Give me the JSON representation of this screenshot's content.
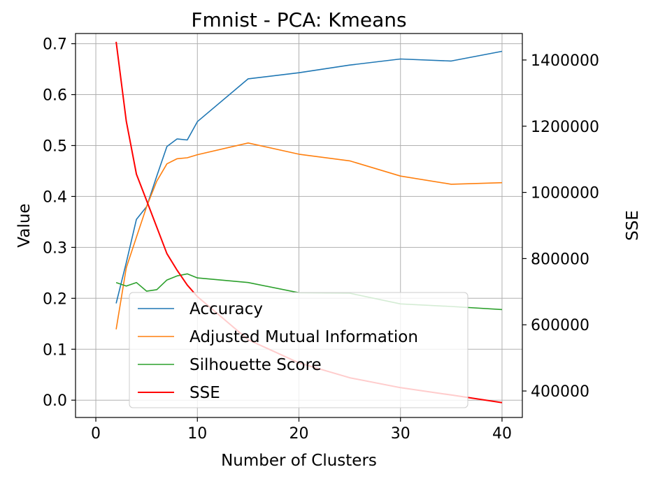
{
  "chart_data": {
    "type": "line",
    "title": "Fmnist - PCA: Kmeans",
    "xlabel": "Number of Clusters",
    "ylabel": "Value",
    "y2label": "SSE",
    "xlim": [
      -2,
      42
    ],
    "ylim": [
      -0.034,
      0.72
    ],
    "y2lim": [
      320000,
      1480000
    ],
    "xticks": [
      0,
      10,
      20,
      30,
      40
    ],
    "yticks": [
      0.0,
      0.1,
      0.2,
      0.3,
      0.4,
      0.5,
      0.6,
      0.7
    ],
    "y2ticks": [
      400000,
      600000,
      800000,
      1000000,
      1200000,
      1400000
    ],
    "grid": true,
    "legend_position": "lower-center",
    "series": [
      {
        "name": "Accuracy",
        "axis": "left",
        "color": "#1f77b4",
        "x": [
          2,
          3,
          4,
          5,
          6,
          7,
          8,
          9,
          10,
          15,
          20,
          25,
          30,
          35,
          40
        ],
        "y": [
          0.19,
          0.27,
          0.355,
          0.38,
          0.44,
          0.498,
          0.513,
          0.511,
          0.547,
          0.631,
          0.643,
          0.658,
          0.67,
          0.666,
          0.685
        ]
      },
      {
        "name": "Adjusted Mutual Information",
        "axis": "left",
        "color": "#ff7f0e",
        "x": [
          2,
          3,
          4,
          5,
          6,
          7,
          8,
          9,
          10,
          15,
          20,
          25,
          30,
          35,
          40
        ],
        "y": [
          0.139,
          0.26,
          0.32,
          0.38,
          0.43,
          0.464,
          0.474,
          0.476,
          0.482,
          0.505,
          0.483,
          0.47,
          0.44,
          0.424,
          0.427
        ]
      },
      {
        "name": "Silhouette Score",
        "axis": "left",
        "color": "#2ca02c",
        "x": [
          2,
          3,
          4,
          5,
          6,
          7,
          8,
          9,
          10,
          15,
          20,
          25,
          30,
          35,
          40
        ],
        "y": [
          0.231,
          0.224,
          0.231,
          0.214,
          0.217,
          0.236,
          0.244,
          0.248,
          0.24,
          0.231,
          0.211,
          0.21,
          0.189,
          0.184,
          0.178
        ]
      },
      {
        "name": "SSE",
        "axis": "right",
        "color": "#ff0000",
        "x": [
          2,
          3,
          4,
          5,
          6,
          7,
          8,
          9,
          10,
          15,
          20,
          25,
          30,
          35,
          40
        ],
        "y": [
          1455000,
          1215000,
          1055000,
          975000,
          895000,
          815000,
          765000,
          720000,
          685000,
          555000,
          485000,
          440000,
          410000,
          388000,
          365000
        ]
      }
    ]
  }
}
